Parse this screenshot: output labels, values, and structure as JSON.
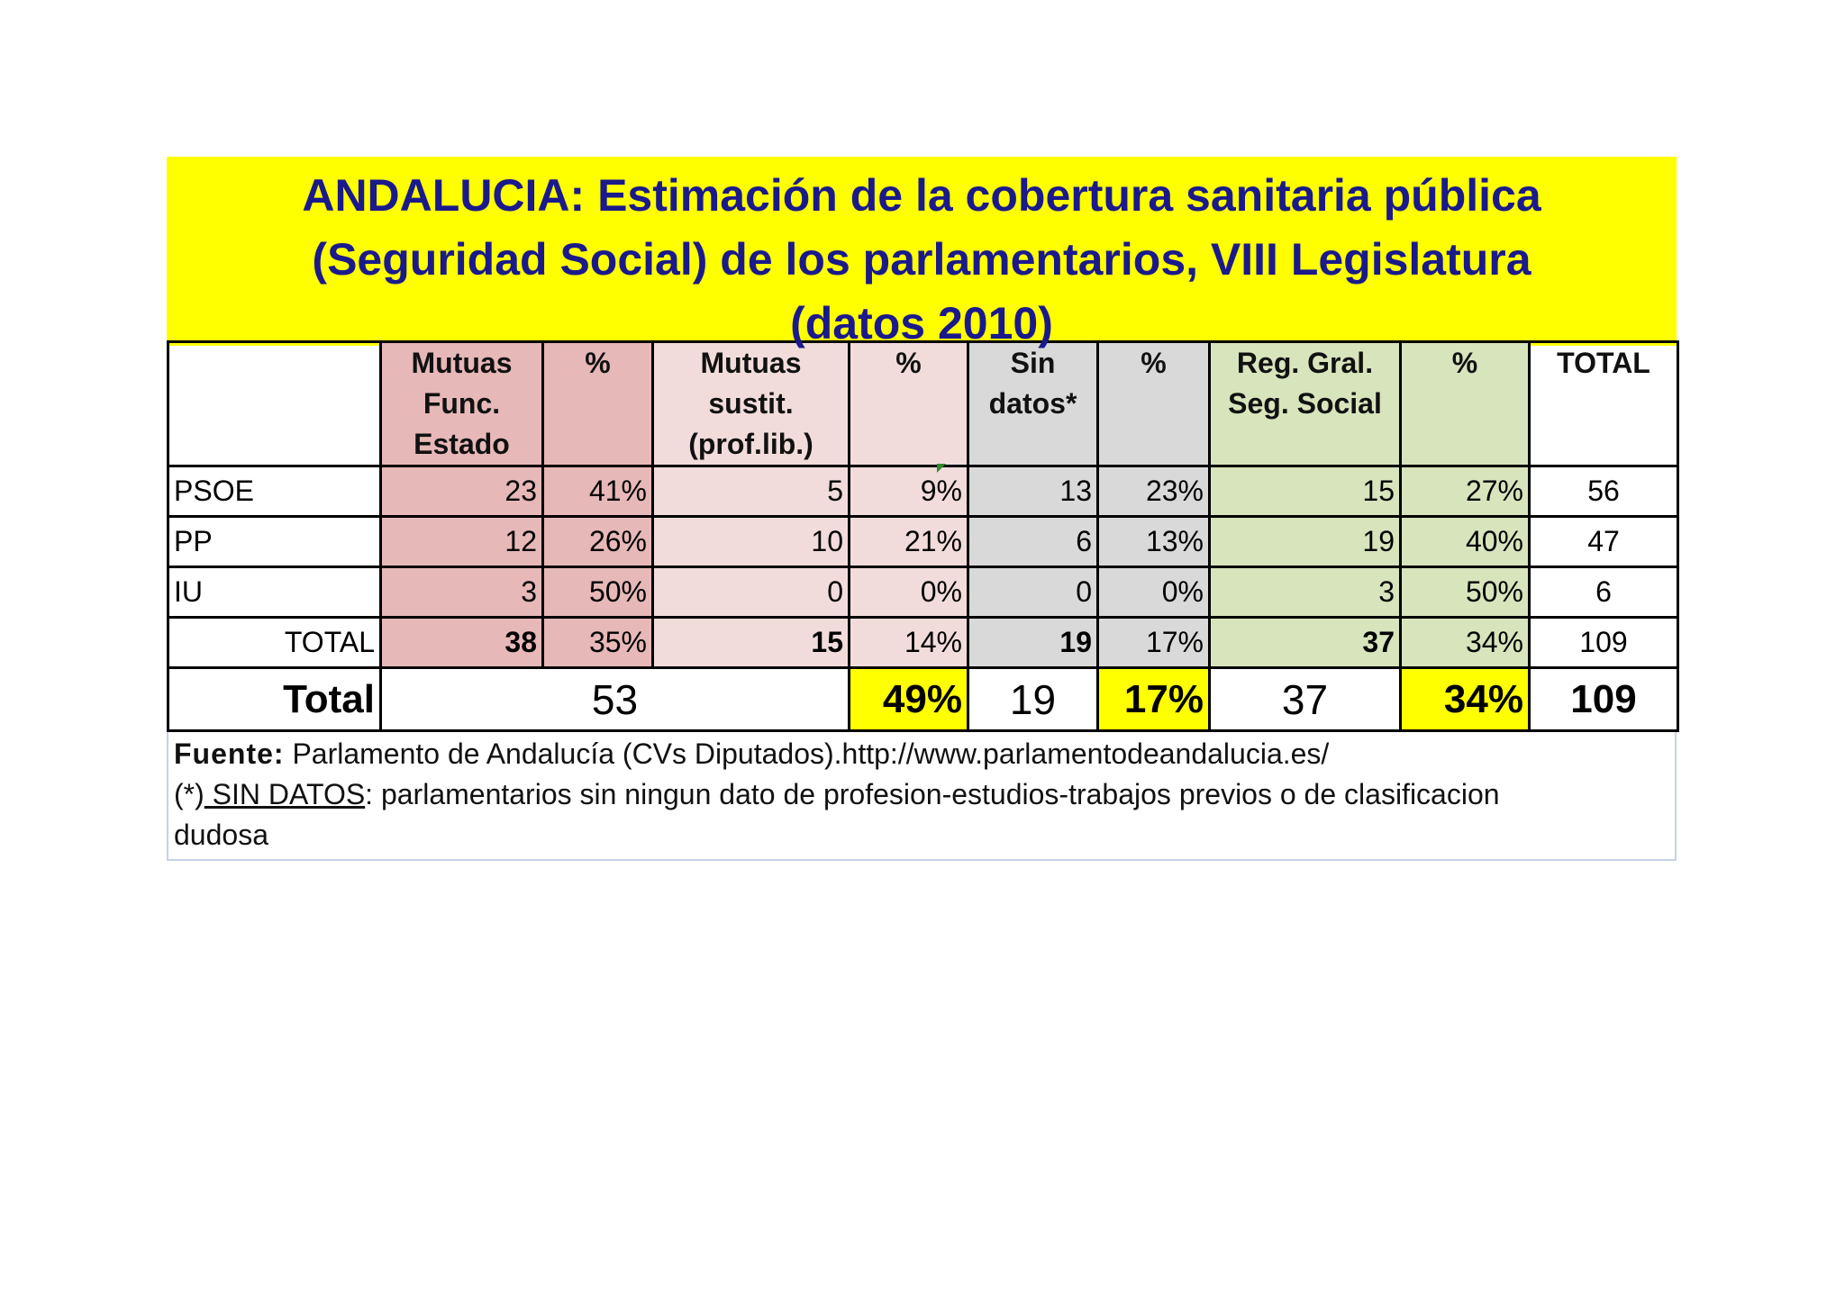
{
  "title": {
    "line1": "ANDALUCIA: Estimación de la cobertura sanitaria pública",
    "line2": "(Seguridad Social) de los parlamentarios, VIII Legislatura",
    "line3": "(datos 2010)"
  },
  "headers": {
    "mutuas_func": [
      "Mutuas",
      "Func.",
      "Estado"
    ],
    "pct1": "%",
    "mutuas_sustit": [
      "Mutuas",
      "sustit.",
      "(prof.lib.)"
    ],
    "pct2": "%",
    "sin_datos": [
      "Sin",
      "datos*"
    ],
    "pct3": "%",
    "reg_gral": [
      "Reg. Gral.",
      "Seg. Social"
    ],
    "pct4": "%",
    "total": "TOTAL"
  },
  "rows": [
    {
      "label": "PSOE",
      "mfe": "23",
      "mfe_pct": "41%",
      "ms": "5",
      "ms_pct": "9%",
      "sd": "13",
      "sd_pct": "23%",
      "rg": "15",
      "rg_pct": "27%",
      "total": "56"
    },
    {
      "label": "PP",
      "mfe": "12",
      "mfe_pct": "26%",
      "ms": "10",
      "ms_pct": "21%",
      "sd": "6",
      "sd_pct": "13%",
      "rg": "19",
      "rg_pct": "40%",
      "total": "47"
    },
    {
      "label": "IU",
      "mfe": "3",
      "mfe_pct": "50%",
      "ms": "0",
      "ms_pct": "0%",
      "sd": "0",
      "sd_pct": "0%",
      "rg": "3",
      "rg_pct": "50%",
      "total": "6"
    },
    {
      "label": "TOTAL",
      "mfe": "38",
      "mfe_pct": "35%",
      "ms": "15",
      "ms_pct": "14%",
      "sd": "19",
      "sd_pct": "17%",
      "rg": "37",
      "rg_pct": "34%",
      "total": "109"
    }
  ],
  "grand": {
    "label": "Total",
    "mutuas": "53",
    "mutuas_pct": "49%",
    "sin_datos": "19",
    "sin_datos_pct": "17%",
    "reg_gral": "37",
    "reg_gral_pct": "34%",
    "total": "109"
  },
  "notes": {
    "source_label": "Fuente:",
    "source_text": " Parlamento de Andalucía (CVs Diputados).http://www.parlamentodeandalucia.es/",
    "footnote_mark": " (*)",
    "footnote_label": " SIN DATOS",
    "footnote_text": ": parlamentarios sin ningun dato de profesion-estudios-trabajos previos o de clasificacion",
    "footnote_cont": "dudosa"
  },
  "colors": {
    "title_bg": "#ffff00",
    "title_text": "#1a1a8c",
    "mutuas_func": "#e6b8b7",
    "mutuas_sustit": "#f2dcdb",
    "sin_datos": "#d9d9d9",
    "reg_gral": "#d8e4bc",
    "highlight": "#ffff00"
  }
}
